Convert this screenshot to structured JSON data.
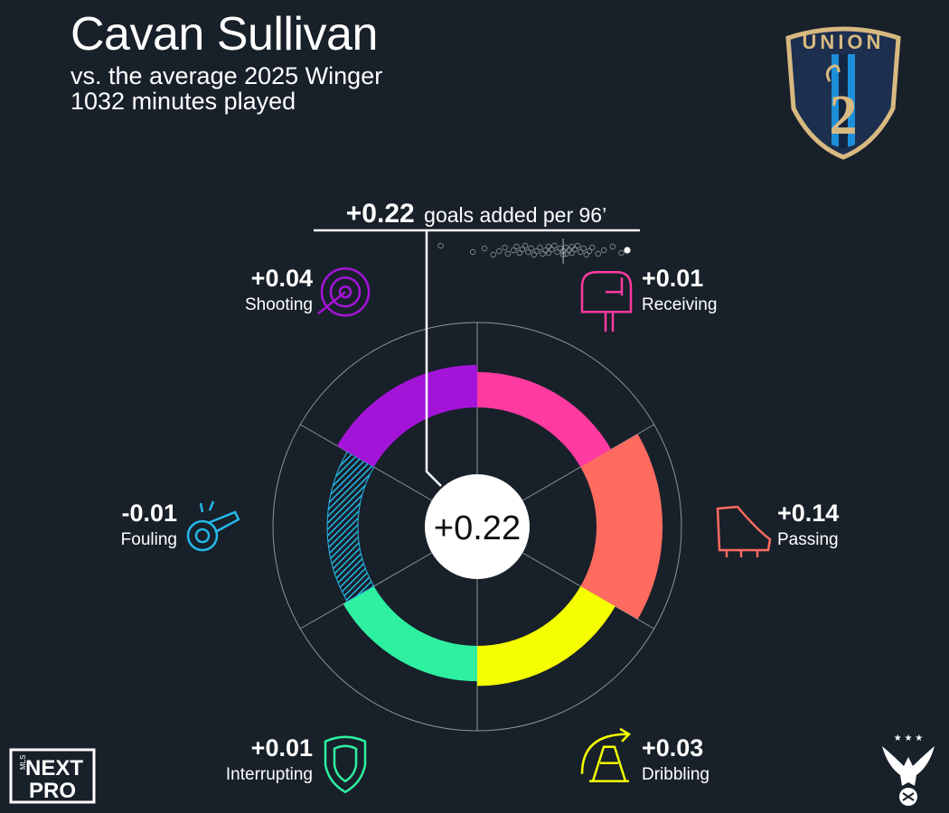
{
  "header": {
    "title": "Cavan Sullivan",
    "subtitle": "vs. the average 2025 Winger",
    "minutes": "1032 minutes played"
  },
  "crest": {
    "wordmark": "UNION",
    "number": "2"
  },
  "total": {
    "value": "+0.22",
    "label_value": "+0.22",
    "label_text": "goals added per 96’"
  },
  "chart_data": {
    "type": "radial-bar",
    "unit": "goals added per 96’",
    "total": 0.22,
    "categories": [
      {
        "name": "Receiving",
        "value": 0.01,
        "label": "+0.01",
        "color": "#ff3aa0",
        "icon": "mailbox-icon"
      },
      {
        "name": "Passing",
        "value": 0.14,
        "label": "+0.14",
        "color": "#ff6b5f",
        "icon": "boot-icon"
      },
      {
        "name": "Dribbling",
        "value": 0.03,
        "label": "+0.03",
        "color": "#f5ff00",
        "icon": "cone-icon"
      },
      {
        "name": "Interrupting",
        "value": 0.01,
        "label": "+0.01",
        "color": "#2ef0a0",
        "icon": "shield-icon"
      },
      {
        "name": "Fouling",
        "value": -0.01,
        "label": "-0.01",
        "color": "#25b8e8",
        "icon": "whistle-icon"
      },
      {
        "name": "Shooting",
        "value": 0.04,
        "label": "+0.04",
        "color": "#a414d8",
        "icon": "target-icon"
      }
    ],
    "distribution_strip": [
      -0.42,
      -0.31,
      -0.27,
      -0.24,
      -0.22,
      -0.2,
      -0.19,
      -0.17,
      -0.16,
      -0.15,
      -0.14,
      -0.13,
      -0.12,
      -0.11,
      -0.1,
      -0.09,
      -0.08,
      -0.07,
      -0.06,
      -0.05,
      -0.05,
      -0.04,
      -0.03,
      -0.02,
      -0.01,
      0,
      0,
      0.01,
      0.01,
      0.02,
      0.03,
      0.03,
      0.04,
      0.05,
      0.06,
      0.07,
      0.08,
      0.09,
      0.1,
      0.12,
      0.14,
      0.17,
      0.2
    ],
    "distribution_highlight": 0.22
  },
  "logos": {
    "league": "MLS NEXT PRO"
  }
}
